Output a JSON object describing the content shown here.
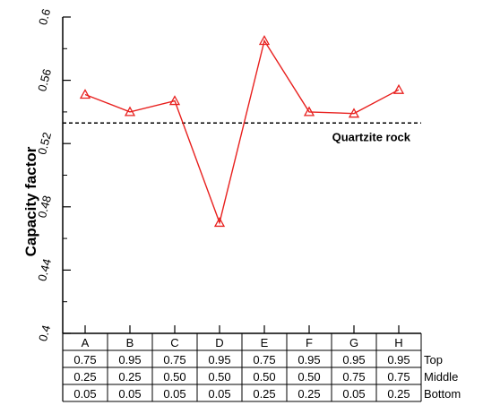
{
  "chart_data": {
    "type": "line",
    "ylabel": "Capacity factor",
    "xlabel": "",
    "title": "",
    "ylim": [
      0.4,
      0.6
    ],
    "yticks": [
      "0.4",
      "0.44",
      "0.48",
      "0.52",
      "0.56",
      "0.6"
    ],
    "categories": [
      "A",
      "B",
      "C",
      "D",
      "E",
      "F",
      "G",
      "H"
    ],
    "series": [
      {
        "values": [
          0.551,
          0.54,
          0.547,
          0.47,
          0.585,
          0.54,
          0.539,
          0.554
        ],
        "color": "#e8201e",
        "marker": "triangle"
      }
    ],
    "reference_line": {
      "label": "Quartzite rock",
      "value": 0.533,
      "style": "dashed",
      "color": "#000000"
    },
    "table": {
      "rows": [
        {
          "label": "Top",
          "values": [
            "0.75",
            "0.95",
            "0.75",
            "0.95",
            "0.75",
            "0.95",
            "0.95",
            "0.95"
          ]
        },
        {
          "label": "Middle",
          "values": [
            "0.25",
            "0.25",
            "0.50",
            "0.50",
            "0.50",
            "0.50",
            "0.75",
            "0.75"
          ]
        },
        {
          "label": "Bottom",
          "values": [
            "0.05",
            "0.05",
            "0.05",
            "0.05",
            "0.25",
            "0.25",
            "0.05",
            "0.25"
          ]
        }
      ]
    },
    "grid": false,
    "legend": "none"
  }
}
